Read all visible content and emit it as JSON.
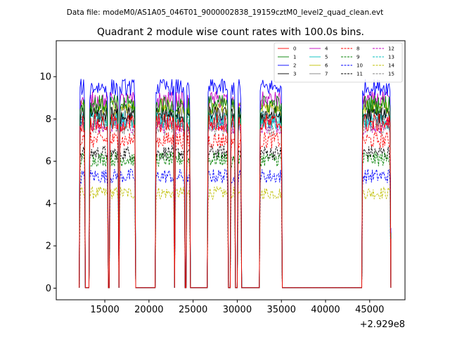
{
  "chart_data": {
    "type": "line",
    "suptitle": "Data file: modeM0/AS1A05_046T01_9000002838_19159cztM0_level2_quad_clean.evt",
    "title": "Quadrant 2 module wise count rates with 100.0s bins.",
    "xlabel": "",
    "ylabel": "",
    "x_offset_label": "+2.929e8",
    "xlim": [
      9500,
      49000
    ],
    "ylim": [
      -0.55,
      11.7
    ],
    "xticks": [
      15000,
      20000,
      25000,
      30000,
      35000,
      40000,
      45000
    ],
    "xtick_labels": [
      "15000",
      "20000",
      "25000",
      "30000",
      "35000",
      "40000",
      "45000"
    ],
    "yticks": [
      0,
      2,
      4,
      6,
      8,
      10
    ],
    "ytick_labels": [
      "0",
      "2",
      "4",
      "6",
      "8",
      "10"
    ],
    "legend_position": "top-right",
    "on_intervals": [
      [
        12200,
        12700
      ],
      [
        13300,
        15300
      ],
      [
        15600,
        16500
      ],
      [
        16700,
        18400
      ],
      [
        20800,
        22800
      ],
      [
        23000,
        24000
      ],
      [
        24300,
        24600
      ],
      [
        26700,
        28900
      ],
      [
        29300,
        29700
      ],
      [
        30100,
        30400
      ],
      [
        32600,
        35000
      ],
      [
        44200,
        47300
      ]
    ],
    "off_level": 0.02,
    "series": [
      {
        "name": "0",
        "level": 7.8,
        "noise": 0.45,
        "color": "#ff0000",
        "dashed": false
      },
      {
        "name": "1",
        "level": 8.7,
        "noise": 0.45,
        "color": "#008000",
        "dashed": false
      },
      {
        "name": "2",
        "level": 9.5,
        "noise": 0.4,
        "color": "#0000ff",
        "dashed": false
      },
      {
        "name": "3",
        "level": 8.2,
        "noise": 0.4,
        "color": "#000000",
        "dashed": false
      },
      {
        "name": "4",
        "level": 8.9,
        "noise": 0.4,
        "color": "#c000c0",
        "dashed": false
      },
      {
        "name": "5",
        "level": 7.9,
        "noise": 0.4,
        "color": "#00bfbf",
        "dashed": false
      },
      {
        "name": "6",
        "level": 8.6,
        "noise": 0.4,
        "color": "#bfbf00",
        "dashed": false
      },
      {
        "name": "7",
        "level": 8.3,
        "noise": 0.4,
        "color": "#808080",
        "dashed": false
      },
      {
        "name": "8",
        "level": 7.0,
        "noise": 0.4,
        "color": "#ff0000",
        "dashed": true
      },
      {
        "name": "9",
        "level": 6.1,
        "noise": 0.35,
        "color": "#008000",
        "dashed": true
      },
      {
        "name": "10",
        "level": 5.3,
        "noise": 0.35,
        "color": "#0000ff",
        "dashed": true
      },
      {
        "name": "11",
        "level": 6.4,
        "noise": 0.35,
        "color": "#000000",
        "dashed": true
      },
      {
        "name": "12",
        "level": 7.7,
        "noise": 0.4,
        "color": "#c000c0",
        "dashed": true
      },
      {
        "name": "13",
        "level": 8.0,
        "noise": 0.4,
        "color": "#00bfbf",
        "dashed": true
      },
      {
        "name": "14",
        "level": 4.5,
        "noise": 0.3,
        "color": "#bfbf00",
        "dashed": true
      },
      {
        "name": "15",
        "level": 7.6,
        "noise": 0.4,
        "color": "#808080",
        "dashed": true
      }
    ]
  }
}
